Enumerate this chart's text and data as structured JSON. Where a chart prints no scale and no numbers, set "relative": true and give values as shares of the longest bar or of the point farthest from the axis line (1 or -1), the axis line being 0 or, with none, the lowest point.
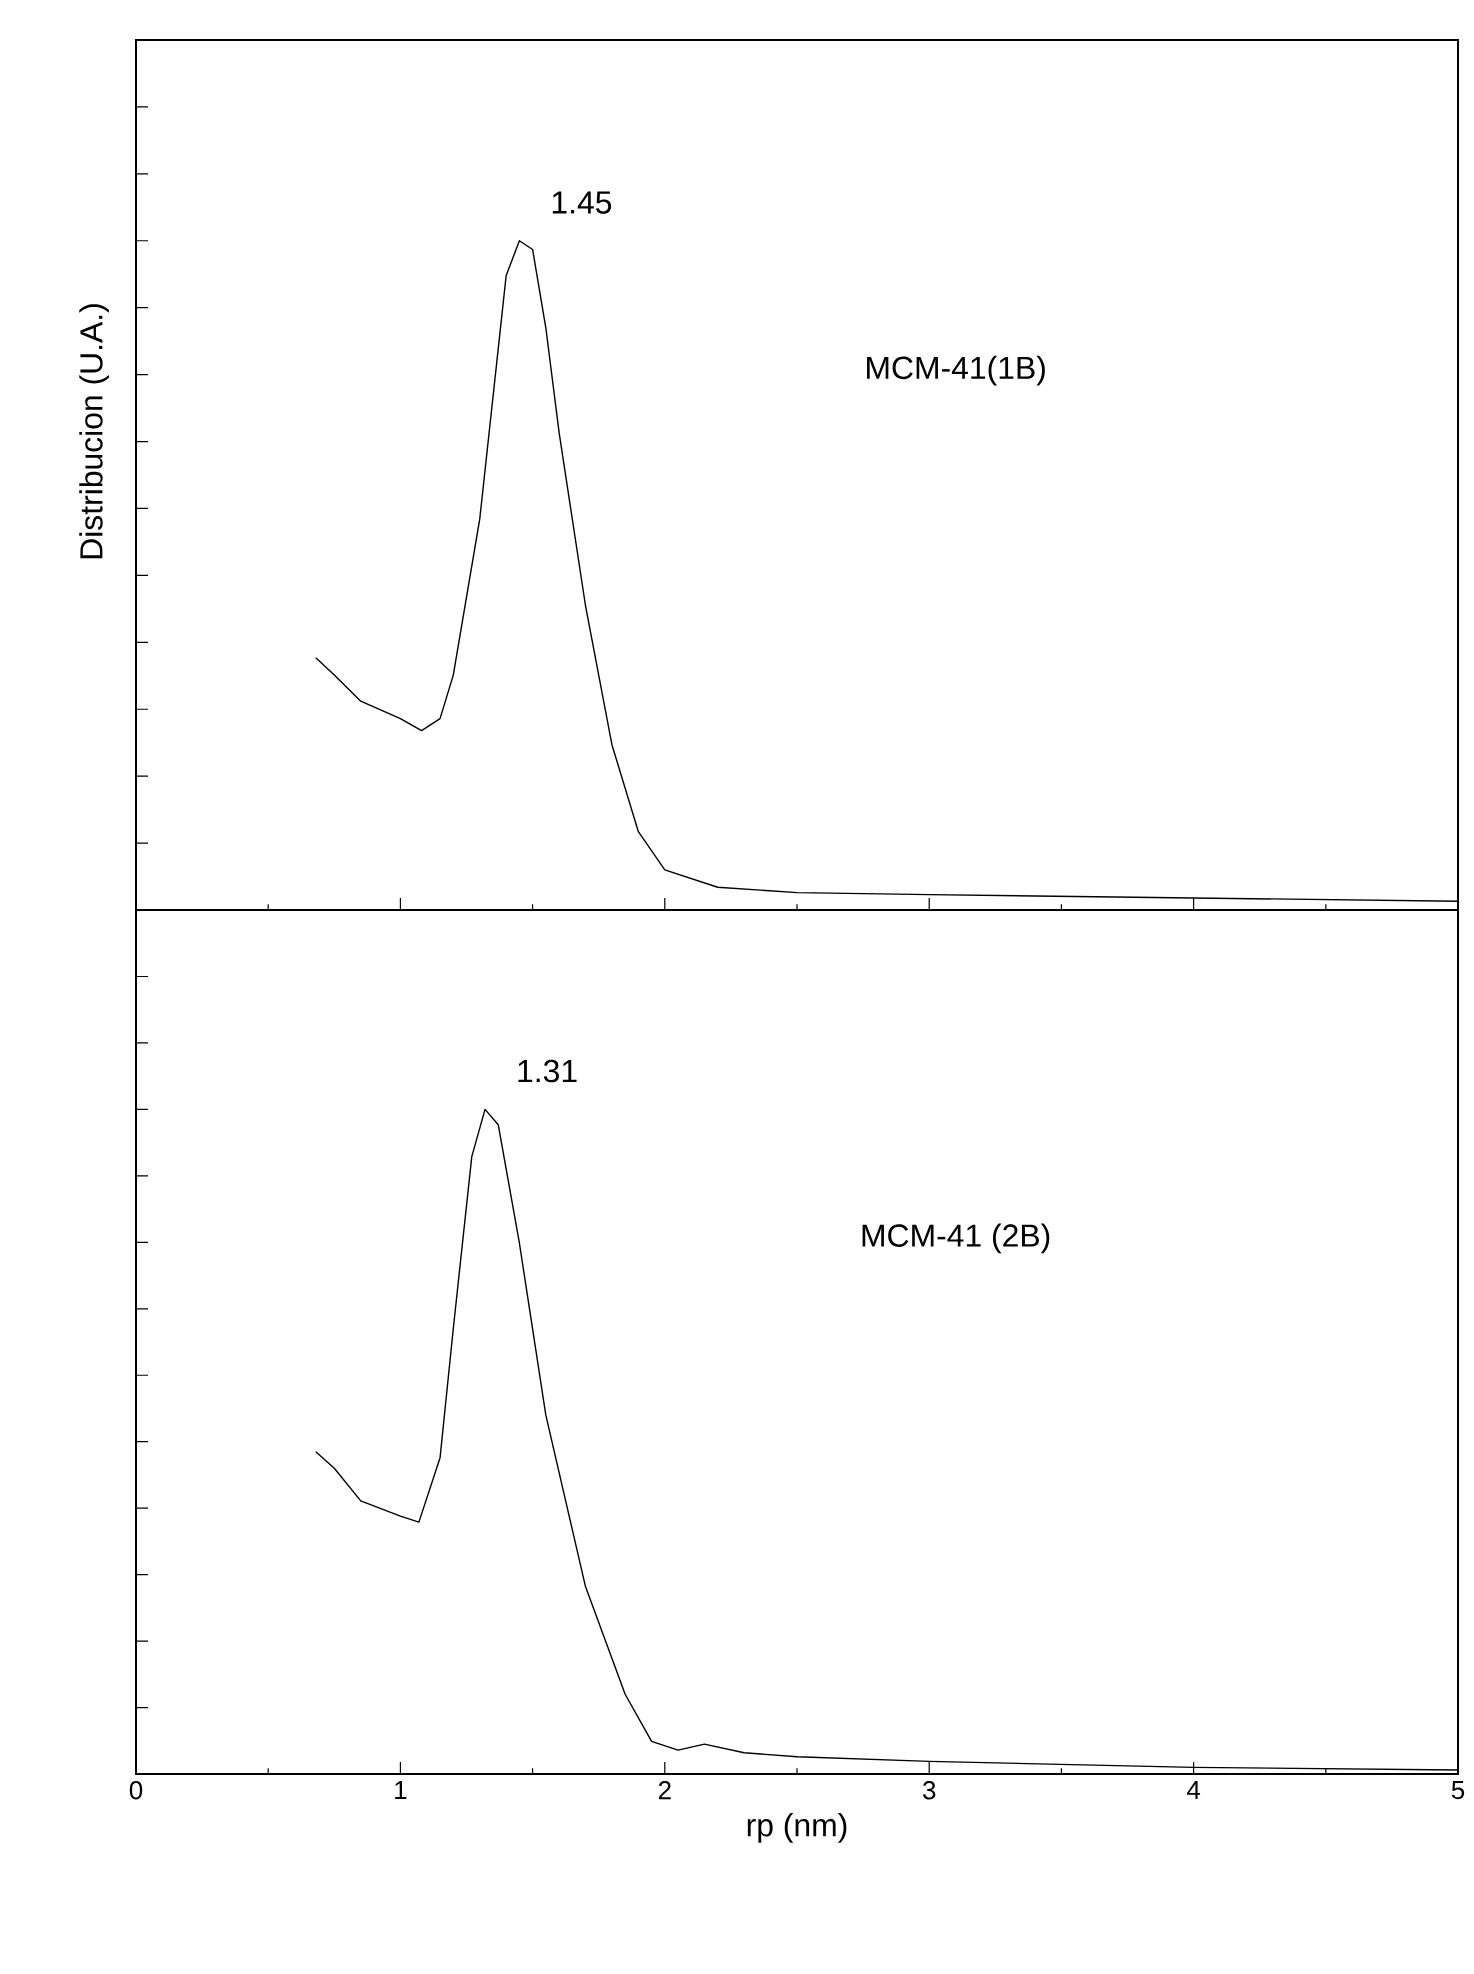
{
  "chart_data": [
    {
      "type": "line",
      "relative": true,
      "ylabel": "Distribucion (U.A.)",
      "xlim": [
        0,
        5
      ],
      "xticks": [
        0,
        1,
        2,
        3,
        4,
        5
      ],
      "tick_labels": false,
      "x": [
        0.68,
        0.75,
        0.85,
        1.0,
        1.08,
        1.15,
        1.2,
        1.3,
        1.4,
        1.45,
        1.5,
        1.55,
        1.6,
        1.7,
        1.8,
        1.9,
        2.0,
        2.2,
        2.5,
        3.0,
        4.0,
        5.0
      ],
      "series": [
        {
          "color": "#000000",
          "values": [
            0.377,
            0.351,
            0.312,
            0.286,
            0.268,
            0.286,
            0.351,
            0.584,
            0.948,
            1.0,
            0.987,
            0.87,
            0.714,
            0.455,
            0.247,
            0.117,
            0.06,
            0.034,
            0.026,
            0.023,
            0.018,
            0.013
          ]
        }
      ],
      "annotations": [
        {
          "text": "1.45",
          "x": 1.45,
          "y": 1.0
        },
        "MCM-41(1B)"
      ]
    },
    {
      "type": "line",
      "relative": true,
      "xlabel": "rp (nm)",
      "xlim": [
        0,
        5
      ],
      "xticks": [
        0,
        1,
        2,
        3,
        4,
        5
      ],
      "tick_labels": "x",
      "x": [
        0.68,
        0.75,
        0.85,
        1.0,
        1.07,
        1.15,
        1.2,
        1.27,
        1.32,
        1.37,
        1.45,
        1.55,
        1.7,
        1.85,
        1.95,
        2.05,
        2.15,
        2.3,
        2.5,
        3.0,
        4.0,
        5.0
      ],
      "series": [
        {
          "color": "#000000",
          "values": [
            0.485,
            0.46,
            0.411,
            0.388,
            0.379,
            0.476,
            0.67,
            0.929,
            1.0,
            0.977,
            0.799,
            0.54,
            0.282,
            0.12,
            0.049,
            0.036,
            0.045,
            0.032,
            0.026,
            0.019,
            0.01,
            0.006
          ]
        }
      ],
      "annotations": [
        {
          "text": "1.31",
          "x": 1.32,
          "y": 1.0
        },
        "MCM-41 (2B)"
      ]
    }
  ]
}
